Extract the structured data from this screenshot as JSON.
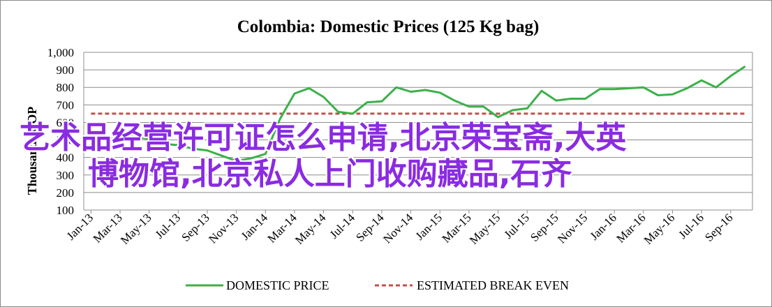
{
  "chart_data": {
    "type": "line",
    "title": "Colombia:  Domestic Prices (125 Kg bag)",
    "ylabel": "Thousands COP",
    "ylim": [
      100,
      1000
    ],
    "yticks": [
      "100",
      "200",
      "300",
      "400",
      "500",
      "600",
      "700",
      "800",
      "900",
      "1,000"
    ],
    "grid": true,
    "legend_position": "bottom",
    "x_tick_labels": [
      "Jan-13",
      "Mar-13",
      "May-13",
      "Jul-13",
      "Sep-13",
      "Nov-13",
      "Jan-14",
      "Mar-14",
      "May-14",
      "Jul-14",
      "Sep-14",
      "Nov-14",
      "Jan-15",
      "Mar-15",
      "May-15",
      "Jul-15",
      "Sep-15",
      "Nov-15",
      "Jan-16",
      "Mar-16",
      "May-16",
      "Jul-16",
      "Sep-16"
    ],
    "x": [
      "Jan-13",
      "Feb-13",
      "Mar-13",
      "Apr-13",
      "May-13",
      "Jun-13",
      "Jul-13",
      "Aug-13",
      "Sep-13",
      "Oct-13",
      "Nov-13",
      "Dec-13",
      "Jan-14",
      "Feb-14",
      "Mar-14",
      "Apr-14",
      "May-14",
      "Jun-14",
      "Jul-14",
      "Aug-14",
      "Sep-14",
      "Oct-14",
      "Nov-14",
      "Dec-14",
      "Jan-15",
      "Feb-15",
      "Mar-15",
      "Apr-15",
      "May-15",
      "Jun-15",
      "Jul-15",
      "Aug-15",
      "Sep-15",
      "Oct-15",
      "Nov-15",
      "Dec-15",
      "Jan-16",
      "Feb-16",
      "Mar-16",
      "Apr-16",
      "May-16",
      "Jun-16",
      "Jul-16",
      "Aug-16",
      "Sep-16",
      "Oct-16"
    ],
    "series": [
      {
        "name": "DOMESTIC PRICE",
        "color": "#3cb04a",
        "style": "solid",
        "values": [
          525,
          505,
          510,
          520,
          505,
          478,
          470,
          450,
          440,
          410,
          380,
          395,
          420,
          620,
          765,
          795,
          745,
          660,
          650,
          715,
          720,
          800,
          775,
          785,
          770,
          725,
          690,
          690,
          630,
          670,
          680,
          780,
          725,
          735,
          735,
          790,
          790,
          795,
          800,
          755,
          760,
          795,
          840,
          800,
          865,
          920
        ]
      },
      {
        "name": "ESTIMATED BREAK EVEN",
        "color": "#c0504d",
        "style": "dashed",
        "values": [
          650,
          650,
          650,
          650,
          650,
          650,
          650,
          650,
          650,
          650,
          650,
          650,
          650,
          650,
          650,
          650,
          650,
          650,
          650,
          650,
          650,
          650,
          650,
          650,
          650,
          650,
          650,
          650,
          650,
          650,
          650,
          650,
          650,
          650,
          650,
          650,
          650,
          650,
          650,
          650,
          650,
          650,
          650,
          650,
          650,
          650
        ]
      }
    ]
  },
  "watermark": {
    "line1": "艺术品经营许可证怎么申请,北京荣宝斋,大英",
    "line2": "博物馆,北京私人上门收购藏品,石齐",
    "color": "#8a2be2"
  }
}
